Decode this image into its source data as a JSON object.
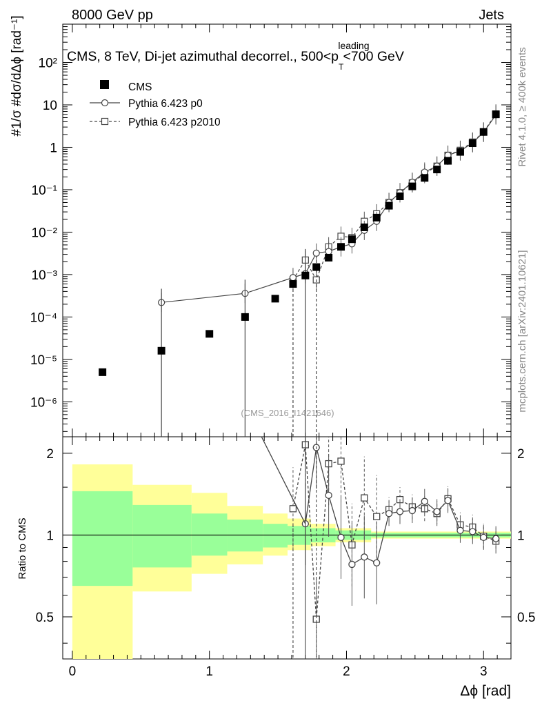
{
  "header": {
    "left": "8000 GeV pp",
    "right": "Jets"
  },
  "side": {
    "top": "Rivet 4.1.0, ≥ 400k events",
    "bottom": "mcplots.cern.ch [arXiv:2401.10621]"
  },
  "chart_data": {
    "type": "scatter",
    "title_parts": {
      "pre": "CMS, 8 TeV, Di-jet azimuthal decorrel., 500<p",
      "sup": "leading",
      "sub": "T",
      "post": "<700 GeV"
    },
    "watermark": "(CMS_2016_I1421646)",
    "xlabel": "Δϕ [rad]",
    "ylabel_main": "#1/σ #dσ/dΔϕ [rad⁻¹]",
    "ylabel_ratio": "Ratio to CMS",
    "xlim": [
      -0.07,
      3.2
    ],
    "ylim_main": [
      1.5e-07,
      800
    ],
    "ylim_ratio": [
      0.35,
      2.3
    ],
    "xticks": [
      0,
      1,
      2,
      3
    ],
    "yticks_main": [
      "10⁻⁶",
      "10⁻⁵",
      "10⁻⁴",
      "10⁻³",
      "10⁻²",
      "10⁻¹",
      "1",
      "10",
      "10²"
    ],
    "yticks_ratio": [
      "0.5",
      "1",
      "2"
    ],
    "legend": [
      {
        "label": "CMS",
        "marker": "filled-square"
      },
      {
        "label": "Pythia 6.423 p0",
        "marker": "open-circle-solid"
      },
      {
        "label": "Pythia 6.423 p2010",
        "marker": "open-square-dashed"
      }
    ],
    "series": [
      {
        "name": "CMS",
        "x": [
          0.22,
          0.65,
          1.0,
          1.26,
          1.48,
          1.61,
          1.7,
          1.78,
          1.87,
          1.96,
          2.04,
          2.13,
          2.22,
          2.31,
          2.39,
          2.48,
          2.57,
          2.66,
          2.74,
          2.83,
          2.92,
          3.0,
          3.09
        ],
        "y": [
          5e-06,
          1.6e-05,
          4e-05,
          0.0001,
          0.00027,
          0.0006,
          0.00095,
          0.0015,
          0.0025,
          0.0045,
          0.0068,
          0.013,
          0.022,
          0.042,
          0.07,
          0.12,
          0.19,
          0.3,
          0.48,
          0.78,
          1.25,
          2.3,
          6.0
        ]
      },
      {
        "name": "Pythia 6.423 p0",
        "x": [
          0.65,
          1.26,
          1.61,
          1.7,
          1.78,
          1.87,
          1.96,
          2.04,
          2.13,
          2.22,
          2.31,
          2.39,
          2.48,
          2.57,
          2.66,
          2.74,
          2.83,
          2.92,
          3.0,
          3.09
        ],
        "y": [
          0.00022,
          0.00036,
          0.00085,
          0.00105,
          0.0032,
          0.0035,
          0.0045,
          0.0053,
          0.011,
          0.018,
          0.05,
          0.085,
          0.15,
          0.26,
          0.36,
          0.65,
          0.82,
          1.28,
          2.25,
          5.8
        ],
        "ratio": [
          null,
          null,
          null,
          1.1,
          2.1,
          1.4,
          0.98,
          0.78,
          0.83,
          0.79,
          1.2,
          1.22,
          1.23,
          1.33,
          1.22,
          1.34,
          1.04,
          1.03,
          0.98,
          0.97
        ]
      },
      {
        "name": "Pythia 6.423 p2010",
        "x": [
          1.61,
          1.7,
          1.78,
          1.87,
          1.96,
          2.04,
          2.13,
          2.22,
          2.31,
          2.39,
          2.48,
          2.57,
          2.66,
          2.74,
          2.83,
          2.92,
          3.0,
          3.09
        ],
        "y": [
          0.00075,
          0.0022,
          0.00075,
          0.0045,
          0.008,
          0.0075,
          0.018,
          0.027,
          0.05,
          0.085,
          0.145,
          0.24,
          0.36,
          0.65,
          0.85,
          1.33,
          2.3,
          6.1
        ],
        "ratio": [
          1.25,
          2.15,
          0.49,
          1.83,
          1.87,
          0.92,
          1.37,
          1.17,
          1.24,
          1.35,
          1.27,
          1.25,
          1.2,
          1.36,
          1.09,
          1.07,
          0.99,
          0.95
        ]
      }
    ],
    "band_bins": [
      {
        "x0": 0.0,
        "x1": 0.44,
        "g_lo": 0.65,
        "g_hi": 1.45,
        "y_lo": 0.3,
        "y_hi": 1.82
      },
      {
        "x0": 0.44,
        "x1": 0.87,
        "g_lo": 0.76,
        "g_hi": 1.29,
        "y_lo": 0.62,
        "y_hi": 1.53
      },
      {
        "x0": 0.87,
        "x1": 1.13,
        "g_lo": 0.84,
        "g_hi": 1.2,
        "y_lo": 0.72,
        "y_hi": 1.43
      },
      {
        "x0": 1.13,
        "x1": 1.39,
        "g_lo": 0.87,
        "g_hi": 1.14,
        "y_lo": 0.78,
        "y_hi": 1.28
      },
      {
        "x0": 1.39,
        "x1": 1.57,
        "g_lo": 0.9,
        "g_hi": 1.1,
        "y_lo": 0.84,
        "y_hi": 1.2
      },
      {
        "x0": 1.57,
        "x1": 1.74,
        "g_lo": 0.92,
        "g_hi": 1.08,
        "y_lo": 0.88,
        "y_hi": 1.15
      },
      {
        "x0": 1.74,
        "x1": 1.92,
        "g_lo": 0.94,
        "g_hi": 1.06,
        "y_lo": 0.91,
        "y_hi": 1.1
      },
      {
        "x0": 1.92,
        "x1": 2.18,
        "g_lo": 0.96,
        "g_hi": 1.04,
        "y_lo": 0.94,
        "y_hi": 1.06
      },
      {
        "x0": 2.18,
        "x1": 3.2,
        "g_lo": 0.98,
        "g_hi": 1.02,
        "y_lo": 0.97,
        "y_hi": 1.03
      }
    ],
    "colors": {
      "green": "#99ff99",
      "yellow": "#ffff99",
      "mc_line": "#444444",
      "data_marker": "#000000"
    }
  }
}
